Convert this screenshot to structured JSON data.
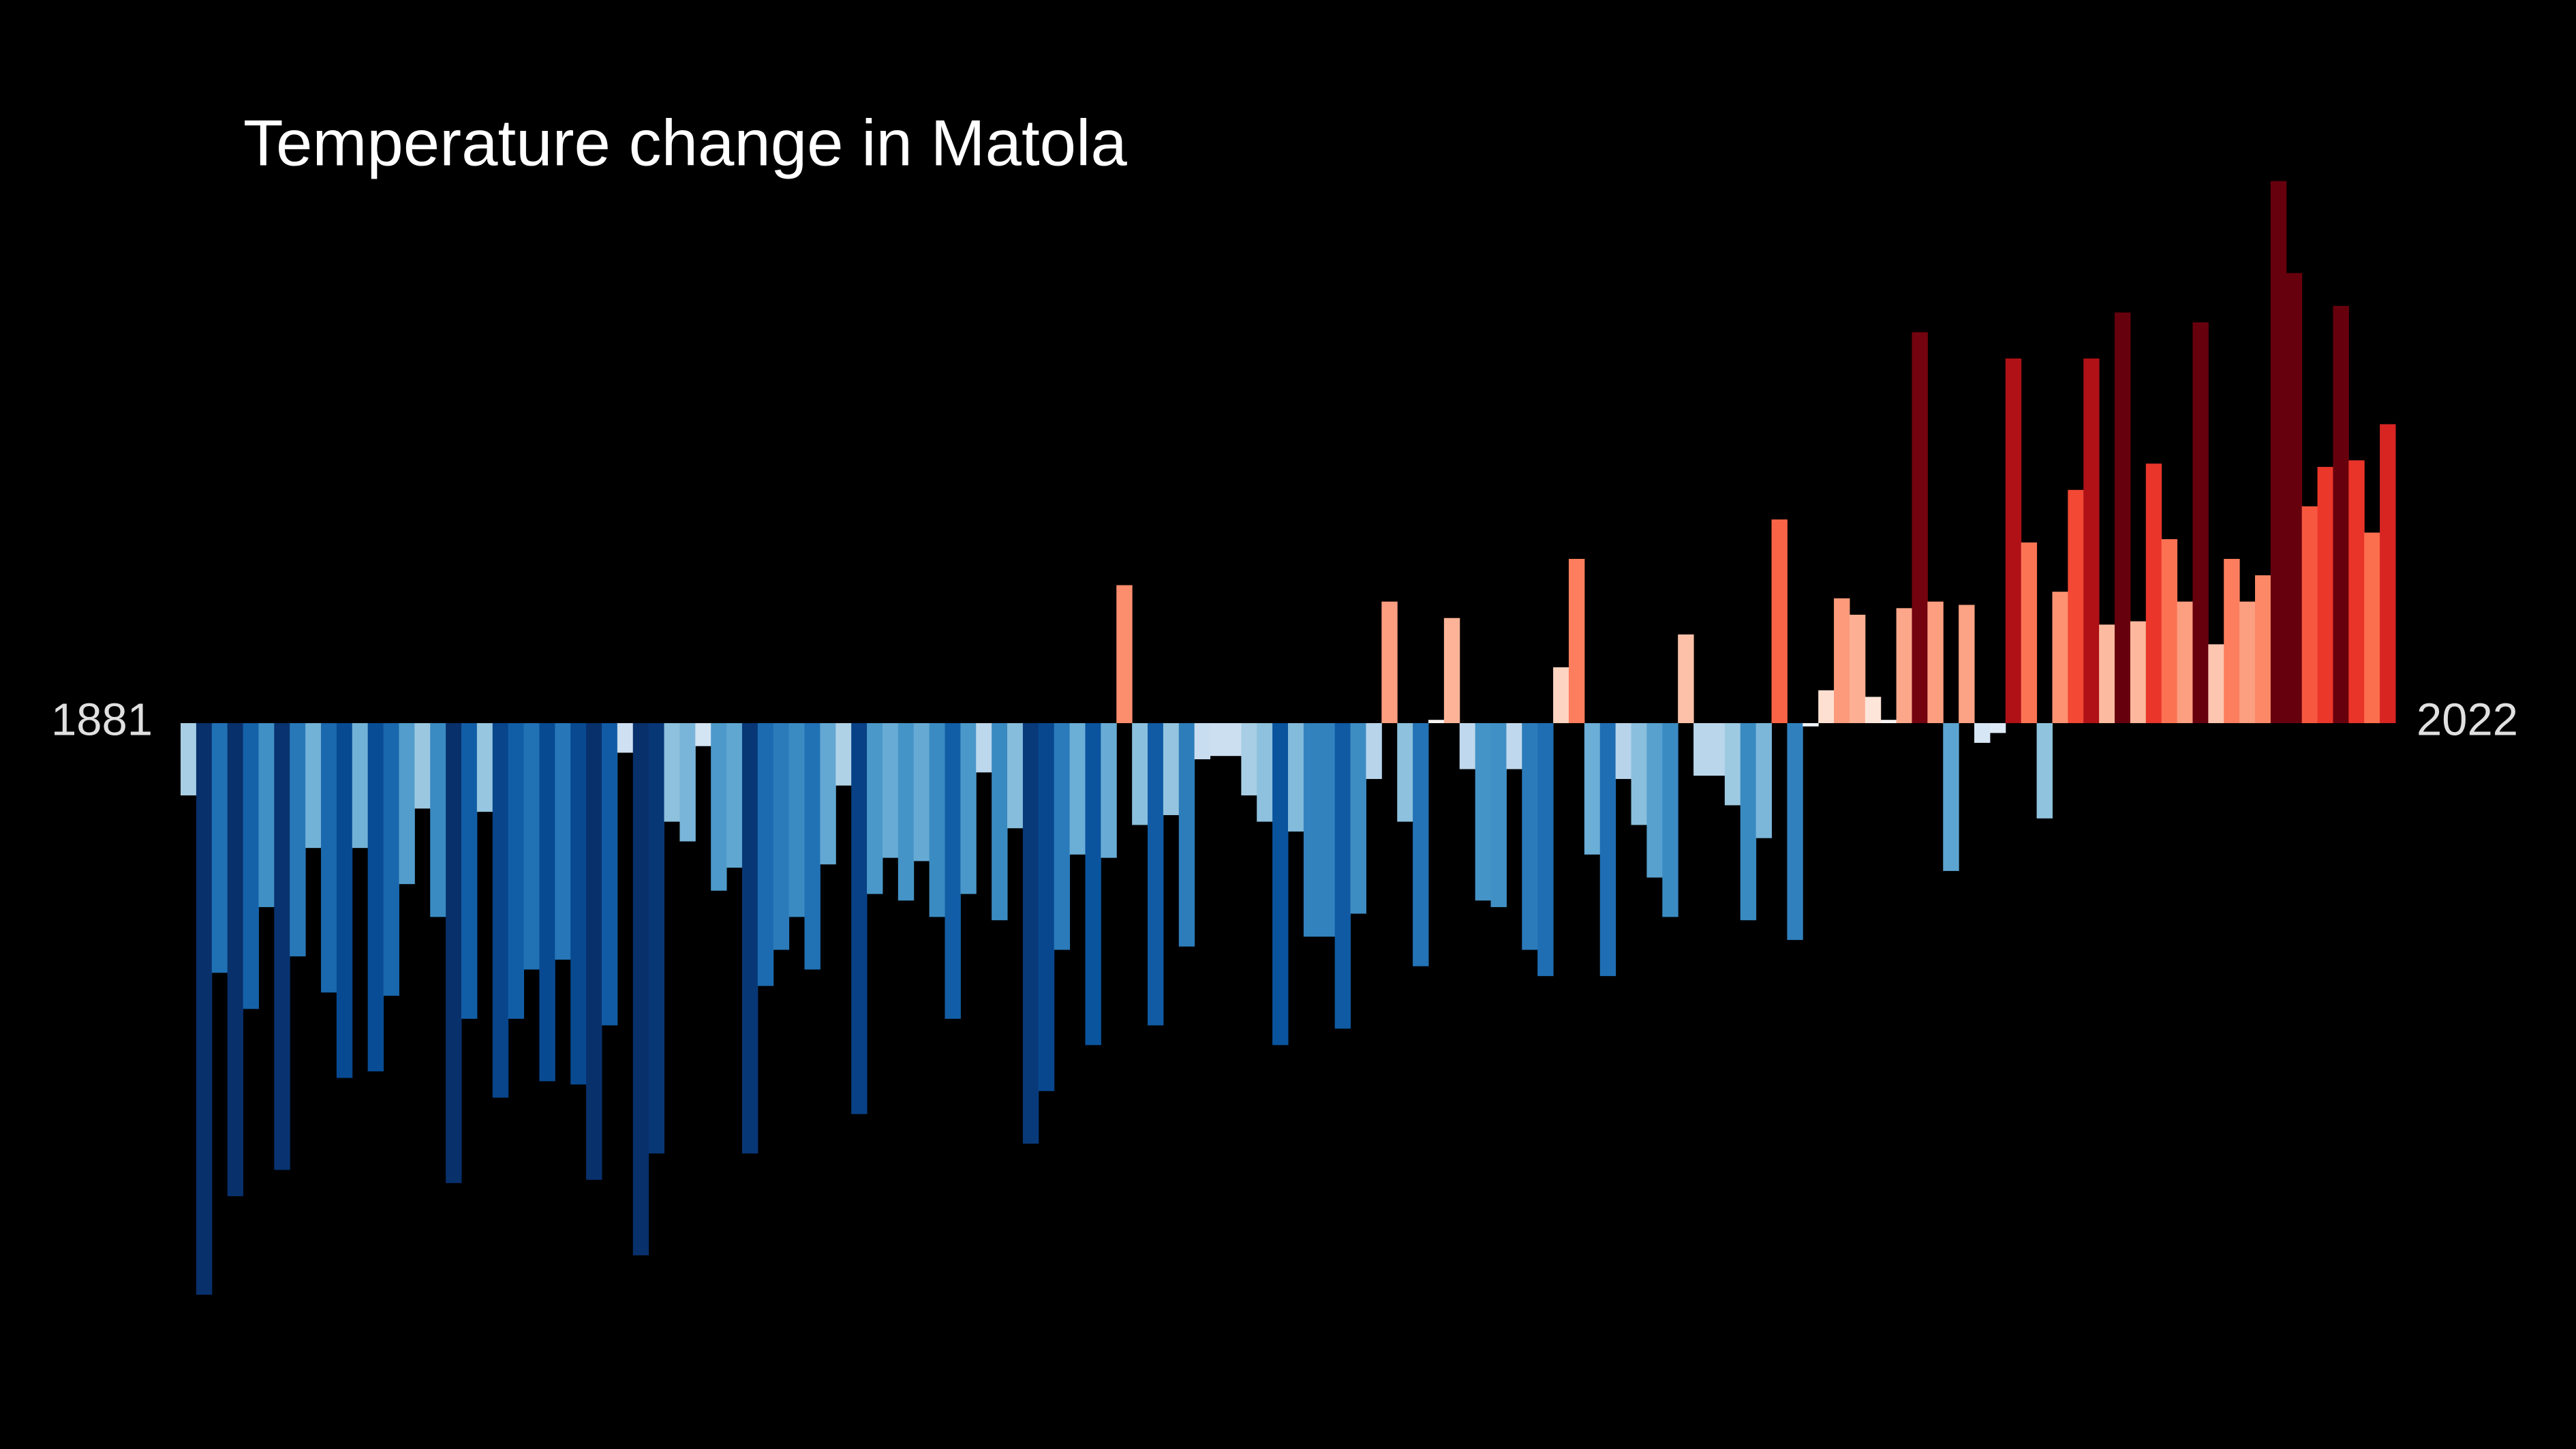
{
  "chart_data": {
    "type": "bar",
    "title": "Temperature change in Matola",
    "categories": [
      "1881",
      null,
      null,
      null,
      null,
      null,
      null,
      null,
      null,
      null,
      null,
      null,
      null,
      null,
      null,
      null,
      null,
      null,
      null,
      null,
      null,
      null,
      null,
      null,
      null,
      null,
      null,
      null,
      null,
      null,
      null,
      null,
      null,
      null,
      null,
      null,
      null,
      null,
      null,
      null,
      null,
      null,
      null,
      null,
      null,
      null,
      null,
      null,
      null,
      null,
      null,
      null,
      null,
      null,
      null,
      null,
      null,
      null,
      null,
      null,
      null,
      null,
      null,
      null,
      null,
      null,
      null,
      null,
      null,
      null,
      null,
      null,
      null,
      null,
      null,
      null,
      null,
      null,
      null,
      null,
      null,
      null,
      null,
      null,
      null,
      null,
      null,
      null,
      null,
      null,
      null,
      null,
      null,
      null,
      null,
      null,
      null,
      null,
      null,
      null,
      null,
      null,
      null,
      null,
      null,
      null,
      null,
      null,
      null,
      null,
      null,
      null,
      null,
      null,
      null,
      null,
      null,
      null,
      null,
      null,
      null,
      null,
      null,
      null,
      null,
      null,
      null,
      null,
      null,
      null,
      null,
      null,
      null,
      null,
      null,
      null,
      null,
      null,
      null,
      null,
      null,
      "2022"
    ],
    "values": [
      -0.22,
      -1.74,
      -0.76,
      -1.44,
      -0.87,
      -0.56,
      -1.36,
      -0.71,
      -0.38,
      -0.82,
      -1.08,
      -0.38,
      -1.06,
      -0.83,
      -0.49,
      -0.26,
      -0.59,
      -1.4,
      -0.9,
      -0.27,
      -1.14,
      -0.9,
      -0.75,
      -1.09,
      -0.72,
      -1.1,
      -1.39,
      -0.92,
      -0.09,
      -1.62,
      -1.31,
      -0.3,
      -0.36,
      -0.07,
      -0.51,
      -0.44,
      -1.31,
      -0.8,
      -0.69,
      -0.59,
      -0.75,
      -0.43,
      -0.19,
      -1.19,
      -0.52,
      -0.41,
      -0.54,
      -0.42,
      -0.59,
      -0.9,
      -0.52,
      -0.15,
      -0.6,
      -0.32,
      -1.28,
      -1.12,
      -0.69,
      -0.4,
      -0.98,
      -0.41,
      0.42,
      -0.31,
      -0.92,
      -0.28,
      -0.68,
      -0.11,
      -0.1,
      -0.1,
      -0.22,
      -0.3,
      -0.98,
      -0.33,
      -0.65,
      -0.65,
      -0.93,
      -0.58,
      -0.17,
      0.37,
      -0.3,
      -0.74,
      0.01,
      0.32,
      -0.14,
      -0.54,
      -0.56,
      -0.14,
      -0.69,
      -0.77,
      0.17,
      0.5,
      -0.4,
      -0.77,
      -0.17,
      -0.31,
      -0.47,
      -0.59,
      0.27,
      -0.16,
      -0.16,
      -0.25,
      -0.6,
      -0.35,
      0.62,
      -0.66,
      -0.01,
      0.1,
      0.38,
      0.33,
      0.08,
      0.01,
      0.35,
      1.19,
      0.37,
      -0.45,
      0.36,
      -0.06,
      -0.03,
      1.11,
      0.55,
      -0.29,
      0.4,
      0.71,
      1.11,
      0.3,
      1.25,
      0.31,
      0.79,
      0.56,
      0.37,
      1.22,
      0.24,
      0.5,
      0.37,
      0.45,
      1.65,
      1.37,
      0.66,
      0.78,
      1.27,
      0.8,
      0.58,
      0.91
    ],
    "colormap": {
      "values": [
        -1.4,
        -1.0,
        -0.75,
        -0.55,
        -0.4,
        -0.25,
        -0.12,
        -0.03,
        0.0,
        0.1,
        0.3,
        0.4,
        0.6,
        0.75,
        1.0,
        1.15,
        1.2
      ],
      "colors": [
        "#08306b",
        "#08519c",
        "#2171b5",
        "#4292c6",
        "#6baed6",
        "#9ecae1",
        "#c6dbef",
        "#deebf7",
        "#f7f7f7",
        "#fee0d2",
        "#fcbba1",
        "#fc9272",
        "#fb6a4a",
        "#ef3b2c",
        "#cb181d",
        "#a50f15",
        "#67000d"
      ]
    },
    "ylim": [
      -2,
      2
    ]
  }
}
